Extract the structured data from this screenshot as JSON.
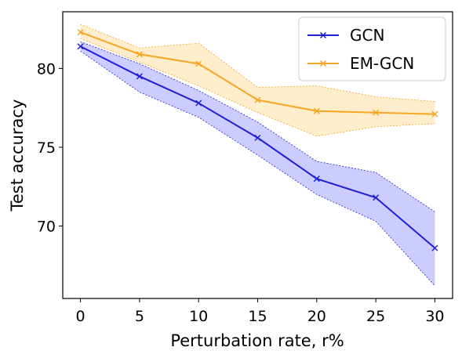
{
  "chart_data": {
    "type": "line",
    "title": "",
    "xlabel": "Perturbation rate, r%",
    "ylabel": "Test accuracy",
    "x": [
      0,
      5,
      10,
      15,
      20,
      25,
      30
    ],
    "xticks": [
      "0",
      "5",
      "10",
      "15",
      "20",
      "25",
      "30"
    ],
    "yticks": [
      "70",
      "75",
      "80"
    ],
    "yticks_values": [
      70,
      75,
      80
    ],
    "xlim": [
      -1.5,
      31.5
    ],
    "ylim": [
      65.4,
      83.6
    ],
    "grid": false,
    "legend_position": "top-right",
    "series": [
      {
        "name": "GCN",
        "color": "#1f1fd6",
        "fill_color": "#0000ff",
        "marker": "x",
        "values": [
          81.4,
          79.5,
          77.8,
          75.6,
          73.0,
          71.8,
          68.6
        ],
        "upper": [
          81.7,
          80.3,
          78.6,
          76.6,
          74.1,
          73.4,
          70.9
        ],
        "lower": [
          81.1,
          78.5,
          76.9,
          74.5,
          72.0,
          70.3,
          66.2
        ]
      },
      {
        "name": "EM-GCN",
        "color": "#f5a623",
        "fill_color": "#ffa500",
        "marker": "x",
        "values": [
          82.3,
          80.9,
          80.3,
          78.0,
          77.3,
          77.2,
          77.1
        ],
        "upper": [
          82.8,
          81.3,
          81.6,
          78.8,
          78.9,
          78.2,
          77.9
        ],
        "lower": [
          81.9,
          80.4,
          78.9,
          77.2,
          75.7,
          76.3,
          76.5
        ]
      }
    ]
  }
}
